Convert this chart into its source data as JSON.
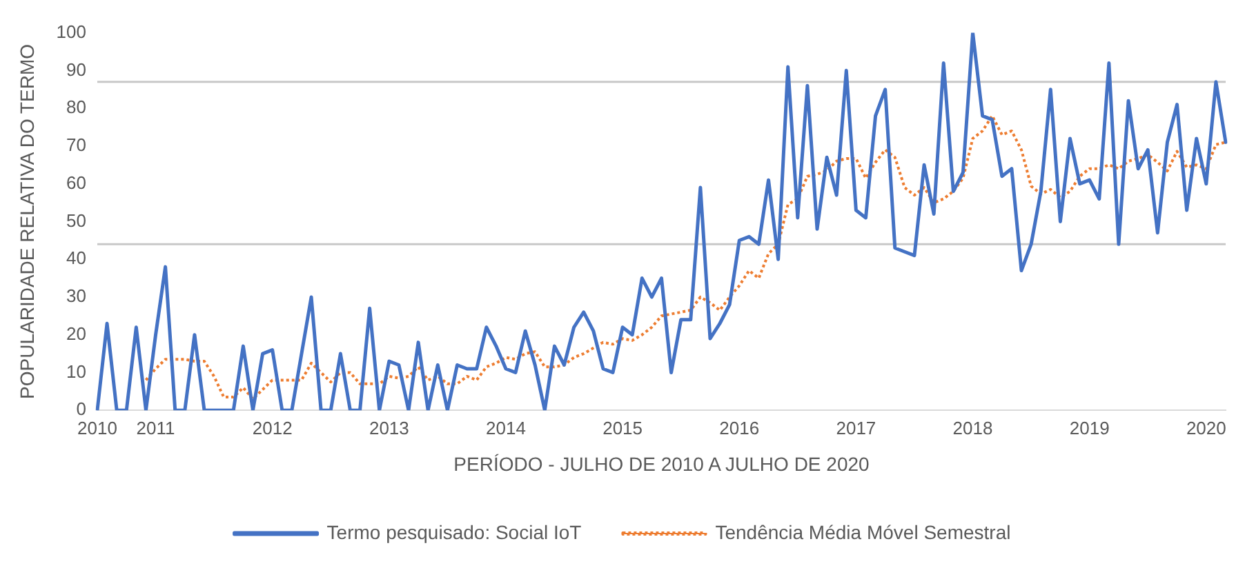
{
  "chart_data": {
    "type": "line",
    "xlabel": "PERÍODO - JULHO DE 2010 A JULHO DE 2020",
    "ylabel": "POPULARIDADE RELATIVA DO TERMO",
    "categories": [
      "2010",
      null,
      null,
      null,
      null,
      null,
      "2011",
      null,
      null,
      null,
      null,
      null,
      null,
      null,
      null,
      null,
      null,
      null,
      "2012",
      null,
      null,
      null,
      null,
      null,
      null,
      null,
      null,
      null,
      null,
      null,
      "2013",
      null,
      null,
      null,
      null,
      null,
      null,
      null,
      null,
      null,
      null,
      null,
      "2014",
      null,
      null,
      null,
      null,
      null,
      null,
      null,
      null,
      null,
      null,
      null,
      "2015",
      null,
      null,
      null,
      null,
      null,
      null,
      null,
      null,
      null,
      null,
      null,
      "2016",
      null,
      null,
      null,
      null,
      null,
      null,
      null,
      null,
      null,
      null,
      null,
      "2017",
      null,
      null,
      null,
      null,
      null,
      null,
      null,
      null,
      null,
      null,
      null,
      "2018",
      null,
      null,
      null,
      null,
      null,
      null,
      null,
      null,
      null,
      null,
      null,
      "2019",
      null,
      null,
      null,
      null,
      null,
      null,
      null,
      null,
      null,
      null,
      null,
      "2020",
      null,
      null
    ],
    "series": [
      {
        "name": "Termo pesquisado: Social IoT",
        "color": "#4472c4",
        "line_style": "solid",
        "values": [
          0,
          23,
          0,
          0,
          22,
          0,
          20,
          38,
          0,
          0,
          20,
          0,
          0,
          0,
          0,
          17,
          0,
          15,
          16,
          0,
          0,
          15,
          30,
          0,
          0,
          15,
          0,
          0,
          27,
          0,
          13,
          12,
          0,
          18,
          0,
          12,
          0,
          12,
          11,
          11,
          22,
          17,
          11,
          10,
          21,
          12,
          0,
          17,
          12,
          22,
          26,
          21,
          11,
          10,
          22,
          20,
          35,
          30,
          35,
          10,
          24,
          24,
          59,
          19,
          23,
          28,
          45,
          46,
          44,
          61,
          40,
          91,
          51,
          86,
          48,
          67,
          57,
          90,
          53,
          51,
          78,
          85,
          43,
          42,
          41,
          65,
          52,
          92,
          58,
          63,
          100,
          78,
          77,
          62,
          64,
          37,
          44,
          58,
          85,
          50,
          72,
          60,
          61,
          56,
          92,
          44,
          82,
          64,
          69,
          47,
          71,
          81,
          53,
          72,
          60,
          87,
          71
        ]
      },
      {
        "name": "Tendência Média Móvel Semestral",
        "color": "#ed7d31",
        "line_style": "dotted",
        "values": [
          null,
          null,
          null,
          null,
          null,
          8,
          11,
          13.5,
          13.5,
          13.5,
          13,
          13,
          9,
          3.5,
          3.5,
          6,
          3,
          5.5,
          8,
          8,
          8,
          8,
          12.5,
          10,
          7.5,
          10,
          10,
          7,
          7,
          7,
          9,
          8.5,
          9,
          11.5,
          8,
          9,
          7,
          7,
          9,
          8,
          11.5,
          12.5,
          14,
          13.5,
          15,
          15.5,
          11.5,
          11.5,
          12,
          14,
          15,
          16.5,
          18,
          17.5,
          19,
          18.5,
          20,
          22,
          25,
          25.5,
          26,
          26.5,
          30,
          28.5,
          26.5,
          30,
          33,
          37,
          35,
          41.5,
          44,
          54.5,
          56,
          62,
          62.5,
          63.5,
          66,
          66.7,
          66.7,
          61.5,
          65.7,
          69,
          67,
          59,
          57,
          59,
          55,
          56,
          58,
          61.5,
          72,
          74,
          78,
          73,
          74,
          69,
          59.4,
          57.3,
          58.5,
          56.4,
          58,
          62,
          64,
          64,
          65,
          64,
          66,
          66.7,
          67.7,
          65.7,
          63.4,
          68.6,
          64.4,
          65,
          64,
          70.4,
          71
        ]
      }
    ],
    "ylim": [
      0,
      100
    ],
    "yticks": [
      0,
      10,
      20,
      30,
      40,
      50,
      60,
      70,
      80,
      90,
      100
    ],
    "grid": false,
    "legend": "bottom",
    "marker": "none",
    "ref_lines": [
      {
        "axis": "y",
        "value": 87,
        "color": "#c8c8c8"
      },
      {
        "axis": "y",
        "value": 44,
        "color": "#c8c8c8"
      }
    ]
  }
}
